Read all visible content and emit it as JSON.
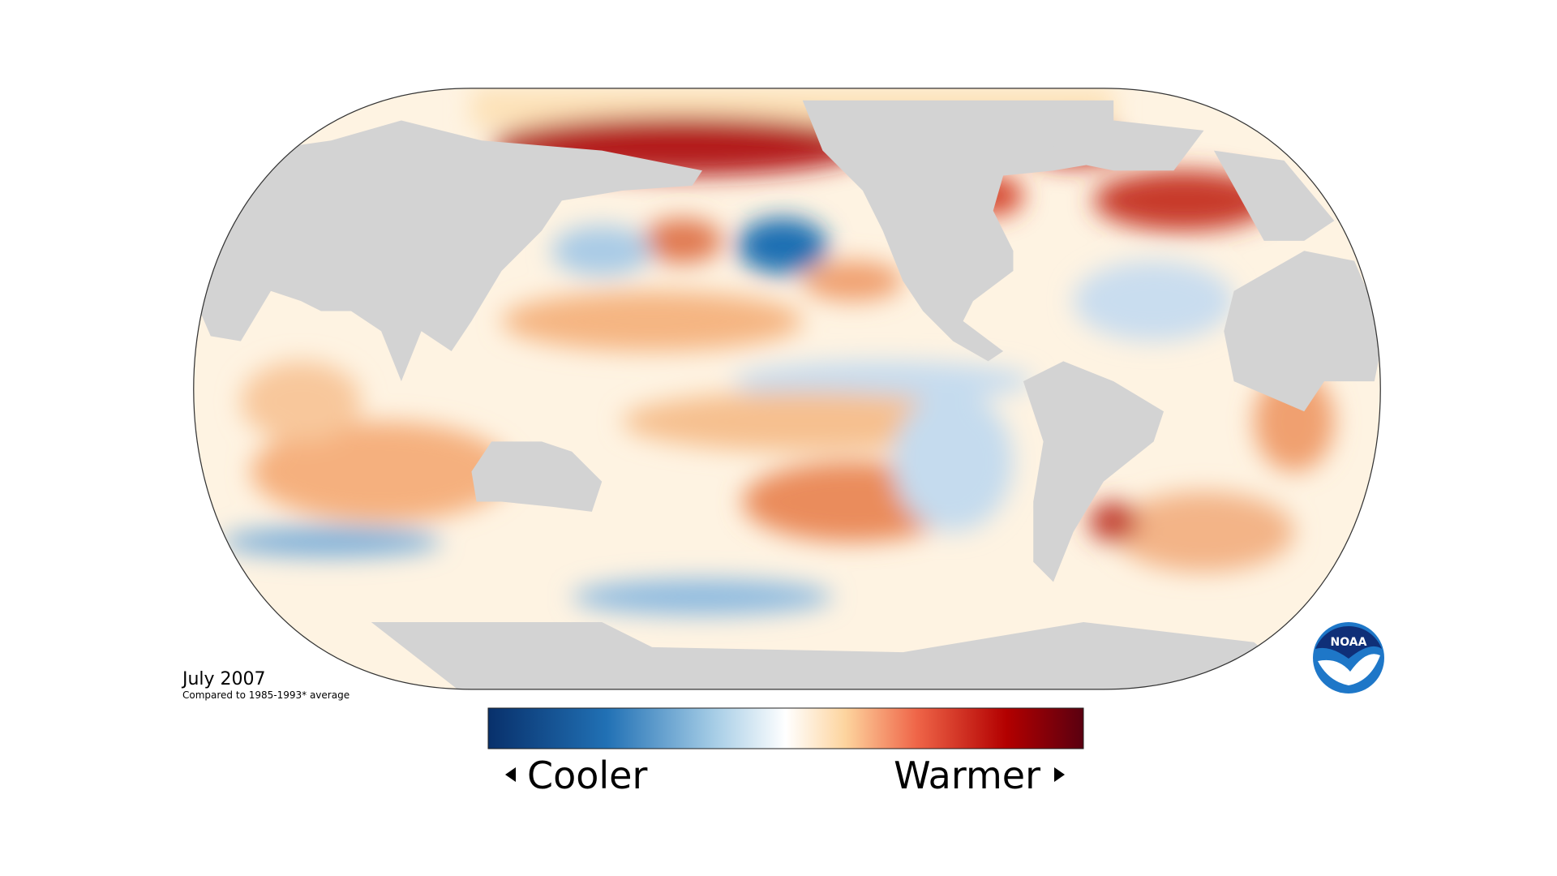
{
  "caption": {
    "title": "July 2007",
    "subtitle": "Compared to 1985-1993* average"
  },
  "legend": {
    "low_label": "Cooler",
    "high_label": "Warmer"
  },
  "logo": {
    "text": "NOAA"
  }
}
